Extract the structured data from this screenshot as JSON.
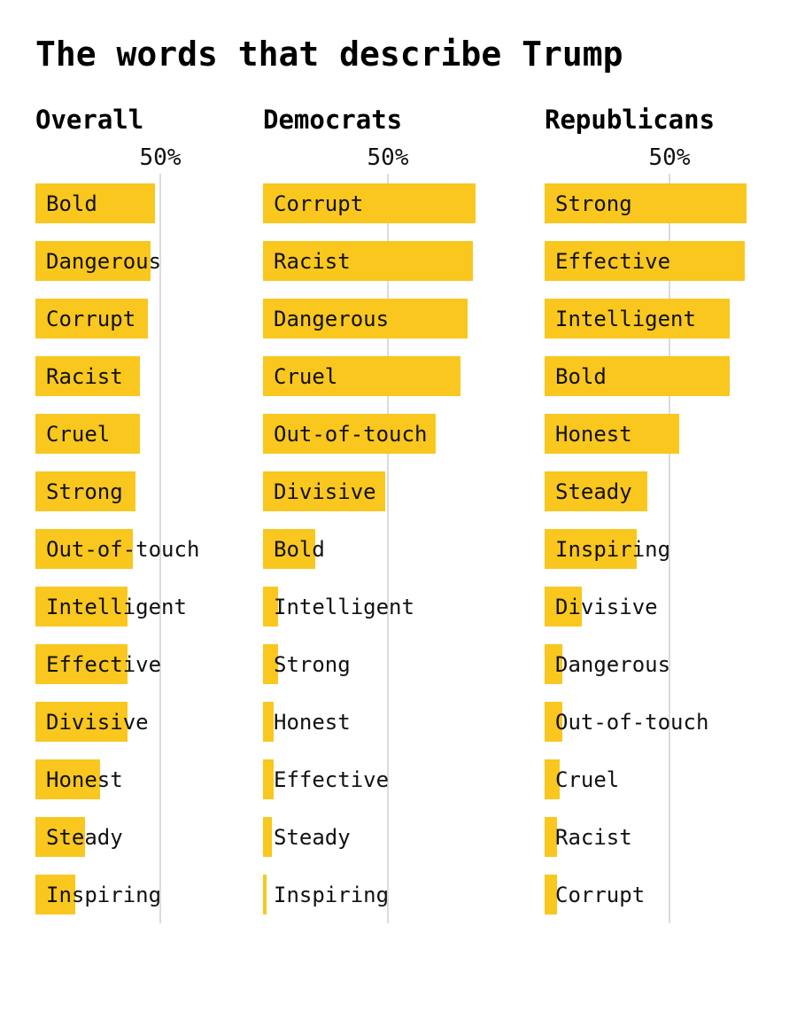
{
  "title": "The words that describe Trump",
  "colors": {
    "bar": "#f9c71d",
    "text": "#111111",
    "gridline": "#dbdbdb",
    "background": "#ffffff"
  },
  "chart_data": {
    "type": "bar",
    "orientation": "horizontal",
    "unit": "percent",
    "axis": {
      "tick_value": 50,
      "tick_label": "50%",
      "gridline": true
    },
    "groups": [
      {
        "label": "Overall",
        "bars": [
          {
            "word": "Bold",
            "value": 48
          },
          {
            "word": "Dangerous",
            "value": 46
          },
          {
            "word": "Corrupt",
            "value": 45
          },
          {
            "word": "Racist",
            "value": 42
          },
          {
            "word": "Cruel",
            "value": 42
          },
          {
            "word": "Strong",
            "value": 40
          },
          {
            "word": "Out-of-touch",
            "value": 39
          },
          {
            "word": "Intelligent",
            "value": 37
          },
          {
            "word": "Effective",
            "value": 37
          },
          {
            "word": "Divisive",
            "value": 37
          },
          {
            "word": "Honest",
            "value": 26
          },
          {
            "word": "Steady",
            "value": 20
          },
          {
            "word": "Inspiring",
            "value": 16
          }
        ]
      },
      {
        "label": "Democrats",
        "bars": [
          {
            "word": "Corrupt",
            "value": 85
          },
          {
            "word": "Racist",
            "value": 84
          },
          {
            "word": "Dangerous",
            "value": 82
          },
          {
            "word": "Cruel",
            "value": 79
          },
          {
            "word": "Out-of-touch",
            "value": 69
          },
          {
            "word": "Divisive",
            "value": 49
          },
          {
            "word": "Bold",
            "value": 21
          },
          {
            "word": "Intelligent",
            "value": 6
          },
          {
            "word": "Strong",
            "value": 6
          },
          {
            "word": "Honest",
            "value": 4.3
          },
          {
            "word": "Effective",
            "value": 4.3
          },
          {
            "word": "Steady",
            "value": 3.6
          },
          {
            "word": "Inspiring",
            "value": 1.5
          }
        ]
      },
      {
        "label": "Republicans",
        "bars": [
          {
            "word": "Strong",
            "value": 81
          },
          {
            "word": "Effective",
            "value": 80
          },
          {
            "word": "Intelligent",
            "value": 74
          },
          {
            "word": "Bold",
            "value": 74
          },
          {
            "word": "Honest",
            "value": 54
          },
          {
            "word": "Steady",
            "value": 41
          },
          {
            "word": "Inspiring",
            "value": 37
          },
          {
            "word": "Divisive",
            "value": 15
          },
          {
            "word": "Dangerous",
            "value": 7
          },
          {
            "word": "Out-of-touch",
            "value": 7
          },
          {
            "word": "Cruel",
            "value": 6
          },
          {
            "word": "Racist",
            "value": 5
          },
          {
            "word": "Corrupt",
            "value": 5
          }
        ]
      }
    ]
  }
}
